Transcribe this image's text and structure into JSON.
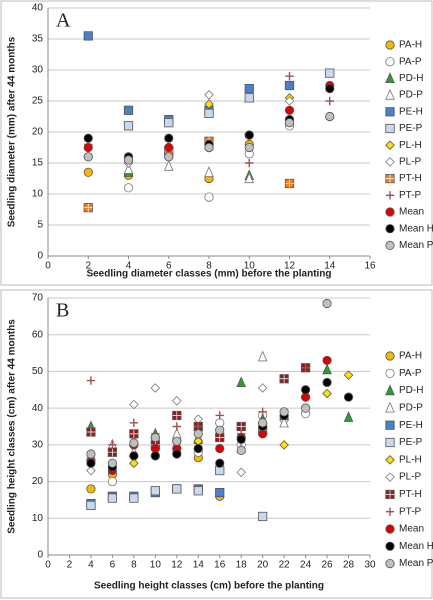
{
  "chart_data": [
    {
      "type": "scatter",
      "annotation": "A",
      "x_label": "Seedling diameter classes (mm) before the planting",
      "y_label": "Seedling diameter (mm) after 44 months",
      "x": [
        2,
        4,
        6,
        8,
        10,
        12,
        14
      ],
      "xlim": [
        0,
        16
      ],
      "xticks": [
        0,
        2,
        4,
        6,
        8,
        10,
        12,
        14,
        16
      ],
      "ylim": [
        0,
        40
      ],
      "yticks": [
        0,
        5,
        10,
        15,
        20,
        25,
        30,
        35,
        40
      ],
      "grid": true,
      "series": [
        {
          "name": "PA-H",
          "color": "#f5b800",
          "marker": "circle",
          "values": [
            13.5,
            13,
            16.5,
            12.5,
            18,
            22,
            null
          ]
        },
        {
          "name": "PA-P",
          "color": "#ffffff",
          "marker": "circle",
          "values": [
            16,
            11,
            16,
            9.5,
            16.5,
            21,
            22.5
          ]
        },
        {
          "name": "PD-H",
          "color": "#2ca02c",
          "marker": "triangle",
          "values": [
            null,
            13.5,
            17,
            18,
            13,
            22,
            null
          ]
        },
        {
          "name": "PD-P",
          "color": "#ffffff",
          "marker": "triangle",
          "values": [
            null,
            14,
            14.5,
            13.5,
            12.5,
            null,
            null
          ]
        },
        {
          "name": "PE-H",
          "color": "#4a7fc9",
          "marker": "square",
          "values": [
            35.5,
            23.5,
            22,
            23.5,
            27,
            27.5,
            null
          ]
        },
        {
          "name": "PE-P",
          "color": "#c9d8ef",
          "marker": "square",
          "values": [
            null,
            21,
            21.5,
            23,
            25.5,
            null,
            29.5
          ]
        },
        {
          "name": "PL-H",
          "color": "#ffe000",
          "marker": "diamond",
          "values": [
            null,
            15,
            null,
            24.5,
            null,
            25.5,
            null
          ]
        },
        {
          "name": "PL-P",
          "color": "#ffffff",
          "marker": "diamond",
          "values": [
            null,
            15,
            null,
            26,
            null,
            25,
            null
          ]
        },
        {
          "name": "PT-H",
          "color": "#f08020",
          "marker": "squarecross",
          "values": [
            7.8,
            null,
            17,
            18.5,
            null,
            11.7,
            null
          ]
        },
        {
          "name": "PT-P",
          "color": "#a05050",
          "marker": "plus",
          "values": [
            18,
            16,
            null,
            17.5,
            15,
            29,
            25
          ]
        },
        {
          "name": "Mean",
          "color": "#e00000",
          "marker": "circle",
          "values": [
            17.5,
            15.5,
            17.5,
            17.5,
            19.5,
            23.5,
            27.5
          ]
        },
        {
          "name": "Mean H",
          "color": "#000000",
          "marker": "circle",
          "values": [
            19,
            16,
            19,
            18,
            19.5,
            22,
            27
          ]
        },
        {
          "name": "Mean P",
          "color": "#c0c0c0",
          "marker": "circle",
          "values": [
            16,
            15.5,
            16,
            17.5,
            17.5,
            21.5,
            22.5
          ]
        }
      ]
    },
    {
      "type": "scatter",
      "annotation": "B",
      "x_label": "Seedling height classes (cm) before the planting",
      "y_label": "Seedling height classes (cm) after 44 months",
      "x": [
        4,
        6,
        8,
        10,
        12,
        14,
        16,
        18,
        20,
        22,
        24,
        26,
        28
      ],
      "xlim": [
        0,
        30
      ],
      "xticks": [
        0,
        2,
        4,
        6,
        8,
        10,
        12,
        14,
        16,
        18,
        20,
        22,
        24,
        26,
        28,
        30
      ],
      "ylim": [
        0,
        70
      ],
      "yticks": [
        0,
        10,
        20,
        30,
        40,
        50,
        60,
        70
      ],
      "grid": true,
      "series": [
        {
          "name": "PA-H",
          "color": "#f5b800",
          "marker": "circle",
          "values": [
            18,
            22,
            27,
            27,
            29,
            26.5,
            16,
            null,
            null,
            null,
            null,
            null,
            null
          ]
        },
        {
          "name": "PA-P",
          "color": "#ffffff",
          "marker": "circle",
          "values": [
            26,
            20,
            30,
            32,
            31,
            28,
            36,
            30,
            38,
            37,
            38.5,
            null,
            null
          ]
        },
        {
          "name": "PD-H",
          "color": "#2ca02c",
          "marker": "triangle",
          "values": [
            35,
            28,
            null,
            33,
            29,
            31.5,
            null,
            47,
            37,
            38,
            44,
            50.5,
            37.5
          ]
        },
        {
          "name": "PD-P",
          "color": "#ffffff",
          "marker": "triangle",
          "values": [
            null,
            30,
            28,
            null,
            33,
            32,
            null,
            29,
            54,
            36,
            null,
            null,
            null
          ]
        },
        {
          "name": "PE-H",
          "color": "#4a7fc9",
          "marker": "square",
          "values": [
            14,
            16,
            16,
            17,
            18,
            18,
            17,
            null,
            null,
            null,
            null,
            null,
            null
          ]
        },
        {
          "name": "PE-P",
          "color": "#c9d8ef",
          "marker": "square",
          "values": [
            13.5,
            15.5,
            15.5,
            17.5,
            18,
            17.5,
            23,
            null,
            10.5,
            null,
            null,
            null,
            null
          ]
        },
        {
          "name": "PL-H",
          "color": "#ffe000",
          "marker": "diamond",
          "values": [
            null,
            null,
            25,
            29,
            null,
            31,
            null,
            null,
            null,
            30,
            null,
            44,
            49
          ]
        },
        {
          "name": "PL-P",
          "color": "#ffffff",
          "marker": "diamond",
          "values": [
            23,
            25,
            41,
            45.5,
            42,
            37,
            null,
            22.5,
            45.5,
            null,
            null,
            null,
            null
          ]
        },
        {
          "name": "PT-H",
          "color": "#8b2020",
          "marker": "squarecross",
          "values": [
            33.5,
            28,
            33,
            30,
            38,
            35,
            32,
            35,
            34,
            48,
            51,
            null,
            null
          ]
        },
        {
          "name": "PT-P",
          "color": "#a05050",
          "marker": "plus",
          "values": [
            47.5,
            30,
            36,
            33,
            35,
            35,
            38,
            33,
            39,
            39,
            51,
            null,
            null
          ]
        },
        {
          "name": "Mean",
          "color": "#e00000",
          "marker": "circle",
          "values": [
            25.5,
            23,
            30,
            29,
            29,
            29,
            29,
            32,
            33,
            38,
            43,
            53,
            null
          ]
        },
        {
          "name": "Mean H",
          "color": "#000000",
          "marker": "circle",
          "values": [
            25,
            24,
            27,
            27,
            27.5,
            29,
            25,
            31.5,
            35,
            38,
            45,
            47,
            43
          ]
        },
        {
          "name": "Mean P",
          "color": "#c0c0c0",
          "marker": "circle",
          "values": [
            27.5,
            25,
            30.5,
            32,
            31,
            33,
            34,
            28.5,
            36,
            39,
            40,
            68.5,
            null
          ]
        }
      ]
    }
  ]
}
